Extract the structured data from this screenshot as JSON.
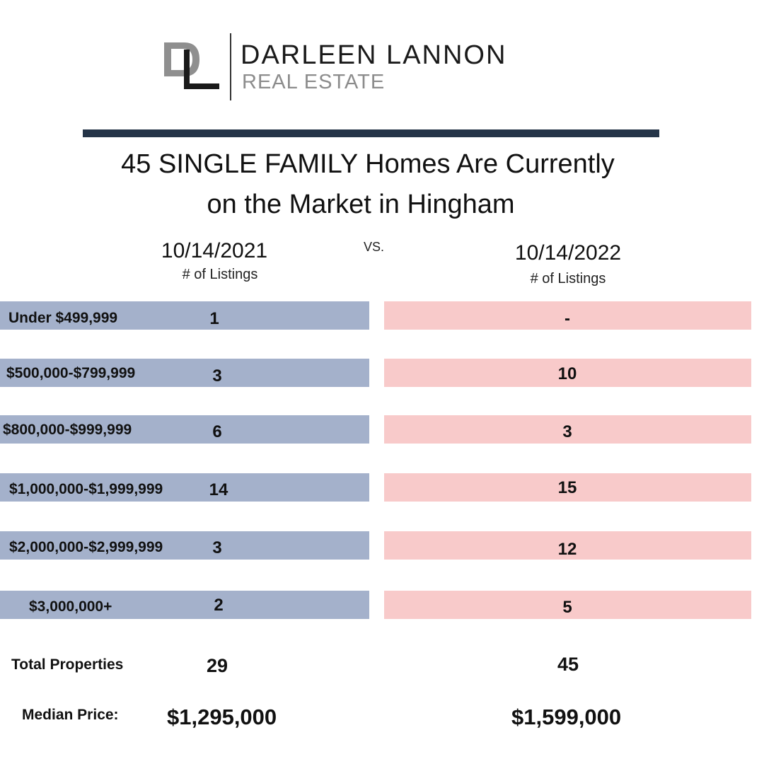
{
  "brand": {
    "monogram": "DL",
    "name": "DARLEEN LANNON",
    "tagline": "REAL ESTATE",
    "colors": {
      "monogram_light": "#8f8f8f",
      "monogram_dark": "#1a1a1a",
      "rule": "#253448"
    }
  },
  "headline": {
    "line1": "45 SINGLE FAMILY Homes Are Currently",
    "line2": "on the Market in Hingham"
  },
  "comparison": {
    "vs_label": "VS.",
    "left": {
      "date": "10/14/2021",
      "subtitle": "# of Listings",
      "bar_color": "#a4b1cb"
    },
    "right": {
      "date": "10/14/2022",
      "subtitle": "# of Listings",
      "bar_color": "#f8caca"
    }
  },
  "rows": [
    {
      "label": "Under $499,999",
      "count_2021": "1",
      "count_2022": "-"
    },
    {
      "label": "$500,000-$799,999",
      "count_2021": "3",
      "count_2022": "10"
    },
    {
      "label": "$800,000-$999,999",
      "count_2021": "6",
      "count_2022": "3"
    },
    {
      "label": "$1,000,000-$1,999,999",
      "count_2021": "14",
      "count_2022": "15"
    },
    {
      "label": "$2,000,000-$2,999,999",
      "count_2021": "3",
      "count_2022": "12"
    },
    {
      "label": "$3,000,000+",
      "count_2021": "2",
      "count_2022": "5"
    }
  ],
  "totals": {
    "label": "Total Properties",
    "value_2021": "29",
    "value_2022": "45"
  },
  "median": {
    "label": "Median Price:",
    "value_2021": "$1,295,000",
    "value_2022": "$1,599,000"
  }
}
